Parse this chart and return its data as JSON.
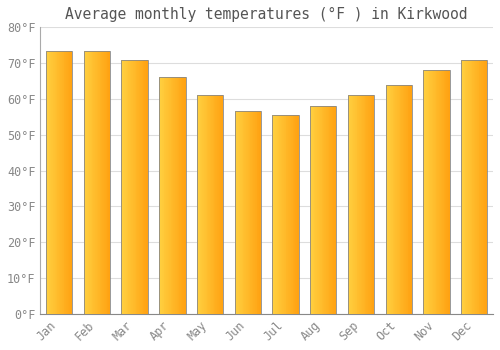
{
  "months": [
    "Jan",
    "Feb",
    "Mar",
    "Apr",
    "May",
    "Jun",
    "Jul",
    "Aug",
    "Sep",
    "Oct",
    "Nov",
    "Dec"
  ],
  "values": [
    73.5,
    73.5,
    71,
    66,
    61,
    56.5,
    55.5,
    58,
    61,
    64,
    68,
    71
  ],
  "title": "Average monthly temperatures (°F ) in Kirkwood",
  "bar_color_left": "#FFD040",
  "bar_color_right": "#FFA010",
  "bar_edge_color": "#888888",
  "background_color": "#FFFFFF",
  "plot_bg_color": "#FFFFFF",
  "grid_color": "#DDDDDD",
  "ylim": [
    0,
    80
  ],
  "yticks": [
    0,
    10,
    20,
    30,
    40,
    50,
    60,
    70,
    80
  ],
  "ylabel_suffix": "°F",
  "title_fontsize": 10.5,
  "tick_fontsize": 8.5,
  "title_color": "#555555",
  "tick_color": "#888888"
}
